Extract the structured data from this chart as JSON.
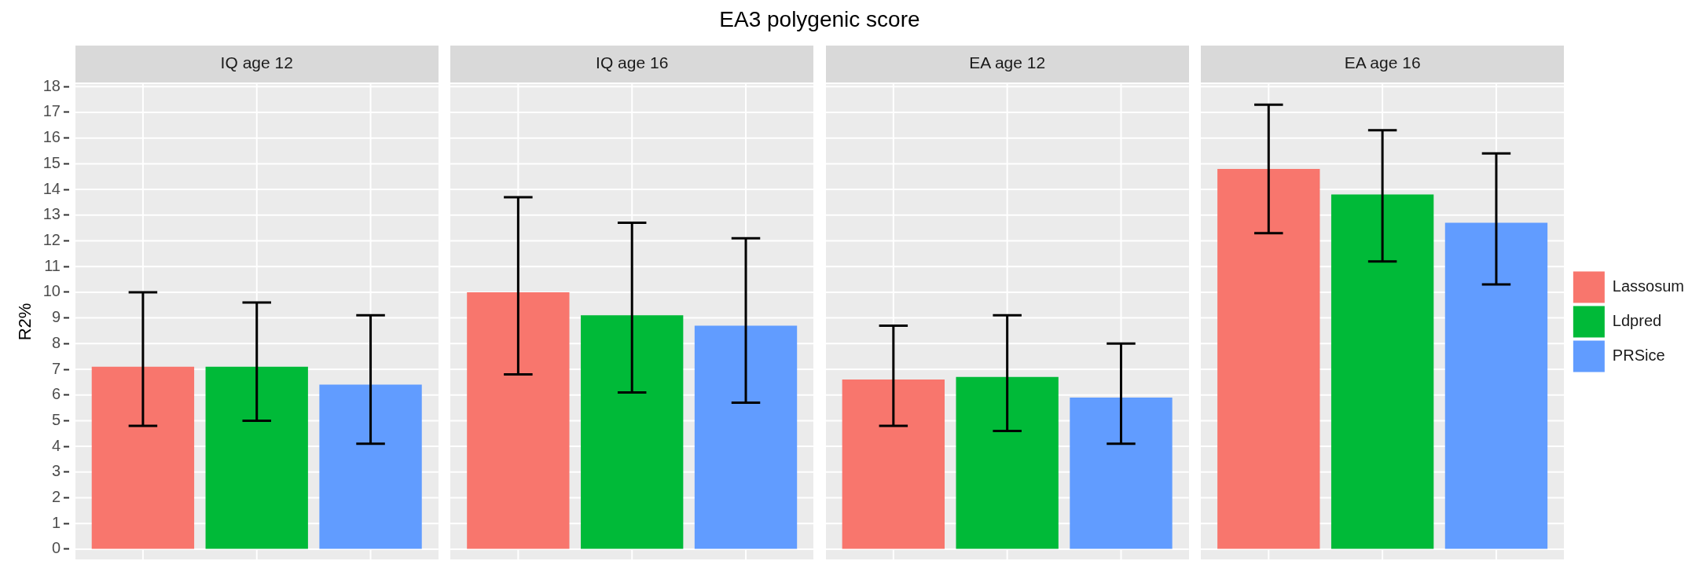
{
  "chart_data": {
    "type": "bar",
    "title": "EA3 polygenic score",
    "ylabel": "R2%",
    "categories": [
      "IQ age 12",
      "IQ age 16",
      "EA age 12",
      "EA age 16"
    ],
    "series": [
      {
        "name": "Lassosum",
        "color": "#f8766d",
        "values": [
          7.1,
          10.0,
          6.6,
          14.8
        ],
        "errors": [
          [
            4.8,
            10.0
          ],
          [
            6.8,
            13.7
          ],
          [
            4.8,
            8.7
          ],
          [
            12.3,
            17.3
          ]
        ]
      },
      {
        "name": "Ldpred",
        "color": "#00ba38",
        "values": [
          7.1,
          9.1,
          6.7,
          13.8
        ],
        "errors": [
          [
            5.0,
            9.6
          ],
          [
            6.1,
            12.7
          ],
          [
            4.6,
            9.1
          ],
          [
            11.2,
            16.3
          ]
        ]
      },
      {
        "name": "PRSice",
        "color": "#619cff",
        "values": [
          6.4,
          8.7,
          5.9,
          12.7
        ],
        "errors": [
          [
            4.1,
            9.1
          ],
          [
            5.7,
            12.1
          ],
          [
            4.1,
            8.0
          ],
          [
            10.3,
            15.4
          ]
        ]
      }
    ],
    "ylim": [
      -0.4,
      18.1
    ],
    "yticks": [
      0,
      1,
      2,
      3,
      4,
      5,
      6,
      7,
      8,
      9,
      10,
      11,
      12,
      13,
      14,
      15,
      16,
      17,
      18
    ],
    "grid": true,
    "legend": "right"
  }
}
